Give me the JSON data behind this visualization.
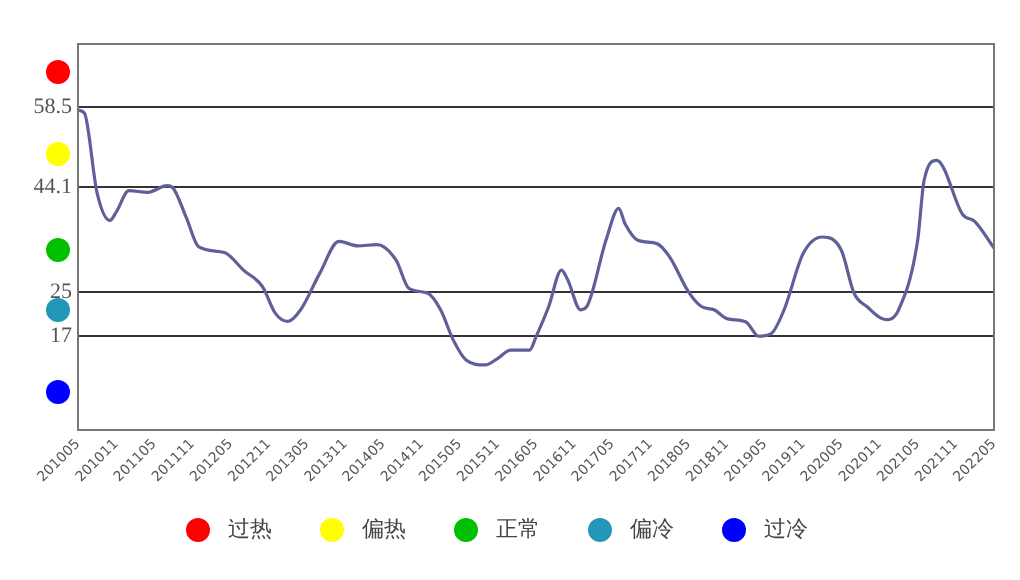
{
  "chart_data": {
    "type": "line",
    "x": [
      "2010-05",
      "2010-06",
      "2010-08",
      "2010-10",
      "2010-11",
      "2011-01",
      "2011-04",
      "2011-07",
      "2011-08",
      "2011-10",
      "2011-12",
      "2012-04",
      "2012-07",
      "2012-10",
      "2012-12",
      "2013-02",
      "2013-04",
      "2013-07",
      "2013-10",
      "2014-01",
      "2014-04",
      "2014-07",
      "2014-09",
      "2014-12",
      "2015-02",
      "2015-04",
      "2015-06",
      "2015-09",
      "2015-11",
      "2016-01",
      "2016-04",
      "2016-05",
      "2016-07",
      "2016-09",
      "2016-10",
      "2016-12",
      "2017-01",
      "2017-04",
      "2017-06",
      "2017-07",
      "2017-09",
      "2017-12",
      "2018-02",
      "2018-05",
      "2018-07",
      "2018-09",
      "2018-11",
      "2019-02",
      "2019-04",
      "2019-06",
      "2019-08",
      "2019-11",
      "2020-02",
      "2020-05",
      "2020-07",
      "2020-09",
      "2020-12",
      "2021-02",
      "2021-05",
      "2021-06",
      "2021-08",
      "2021-09",
      "2021-12",
      "2022-02",
      "2022-05"
    ],
    "series": [
      {
        "color": "#5f5f9a",
        "values": [
          58,
          57.5,
          43,
          38,
          39.5,
          43.4,
          43.1,
          44.3,
          43.8,
          38.6,
          33.2,
          32.2,
          29,
          26,
          21.2,
          19.7,
          21.8,
          28.4,
          34.2,
          33.4,
          33.6,
          30.8,
          25.7,
          24.8,
          21.8,
          16.3,
          12.7,
          11.8,
          13,
          14.5,
          14.5,
          16.9,
          22.4,
          29,
          27.2,
          21.8,
          22.4,
          34.4,
          40.2,
          37.4,
          34.4,
          33.8,
          31.4,
          25,
          22.4,
          21.8,
          20.2,
          19.6,
          17,
          17.5,
          21.8,
          32,
          35,
          32.6,
          24.8,
          22.4,
          20,
          21.8,
          34.4,
          45.2,
          48.9,
          47.7,
          39.2,
          37.8,
          33
        ]
      }
    ],
    "xlim": [
      "2010-05",
      "2022-05"
    ],
    "xticks": [
      {
        "value": "2010-05",
        "label": "201005"
      },
      {
        "value": "2010-11",
        "label": "201011"
      },
      {
        "value": "2011-05",
        "label": "201105"
      },
      {
        "value": "2011-11",
        "label": "201111"
      },
      {
        "value": "2012-05",
        "label": "201205"
      },
      {
        "value": "2012-11",
        "label": "201211"
      },
      {
        "value": "2013-05",
        "label": "201305"
      },
      {
        "value": "2013-11",
        "label": "201311"
      },
      {
        "value": "2014-05",
        "label": "201405"
      },
      {
        "value": "2014-11",
        "label": "201411"
      },
      {
        "value": "2015-05",
        "label": "201505"
      },
      {
        "value": "2015-11",
        "label": "201511"
      },
      {
        "value": "2016-05",
        "label": "201605"
      },
      {
        "value": "2016-11",
        "label": "201611"
      },
      {
        "value": "2017-05",
        "label": "201705"
      },
      {
        "value": "2017-11",
        "label": "201711"
      },
      {
        "value": "2018-05",
        "label": "201805"
      },
      {
        "value": "2018-11",
        "label": "201811"
      },
      {
        "value": "2019-05",
        "label": "201905"
      },
      {
        "value": "2019-11",
        "label": "201911"
      },
      {
        "value": "2020-05",
        "label": "202005"
      },
      {
        "value": "2020-11",
        "label": "202011"
      },
      {
        "value": "2021-05",
        "label": "202105"
      },
      {
        "value": "2021-11",
        "label": "202111"
      },
      {
        "value": "2022-05",
        "label": "202205"
      }
    ],
    "ylim": [
      0,
      70
    ],
    "yticks": [
      17,
      25,
      44.1,
      58.5
    ],
    "grid": "y",
    "marker": "none",
    "line_style": "solid",
    "annotations": [
      "过热",
      "偏热",
      "正常",
      "偏冷",
      "过冷"
    ]
  }
}
